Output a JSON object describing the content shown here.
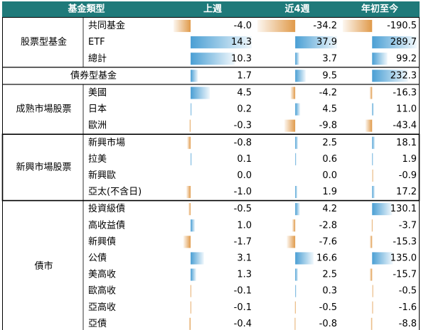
{
  "chart_data": {
    "type": "table",
    "header": {
      "category": "基金類型",
      "columns": [
        "上週",
        "近4週",
        "年初至今"
      ]
    },
    "groups": [
      {
        "name": "股票型基金",
        "rows": [
          {
            "label": "共同基金",
            "values": [
              -4.0,
              -34.2,
              -190.5
            ],
            "display": [
              "-4.0",
              "-34.2",
              "-190.5"
            ]
          },
          {
            "label": "ETF",
            "values": [
              14.3,
              37.9,
              289.7
            ],
            "display": [
              "14.3",
              "37.9",
              "289.7"
            ]
          },
          {
            "label": "總計",
            "values": [
              10.3,
              3.7,
              99.2
            ],
            "display": [
              "10.3",
              "3.7",
              "99.2"
            ]
          }
        ]
      },
      {
        "name": "債券型基金",
        "rows": [
          {
            "label": "",
            "values": [
              1.7,
              9.5,
              232.3
            ],
            "display": [
              "1.7",
              "9.5",
              "232.3"
            ]
          }
        ]
      },
      {
        "name": "成熟市場股票",
        "rows": [
          {
            "label": "美國",
            "values": [
              4.5,
              -4.2,
              -16.3
            ],
            "display": [
              "4.5",
              "-4.2",
              "-16.3"
            ]
          },
          {
            "label": "日本",
            "values": [
              0.2,
              4.5,
              11.0
            ],
            "display": [
              "0.2",
              "4.5",
              "11.0"
            ]
          },
          {
            "label": "歐洲",
            "values": [
              -0.3,
              -9.8,
              -43.4
            ],
            "display": [
              "-0.3",
              "-9.8",
              "-43.4"
            ]
          }
        ]
      },
      {
        "name": "新興市場股票",
        "rows": [
          {
            "label": "新興市場",
            "values": [
              -0.8,
              2.5,
              18.1
            ],
            "display": [
              "-0.8",
              "2.5",
              "18.1"
            ]
          },
          {
            "label": "拉美",
            "values": [
              0.1,
              0.6,
              1.9
            ],
            "display": [
              "0.1",
              "0.6",
              "1.9"
            ]
          },
          {
            "label": "新興歐",
            "values": [
              0.0,
              0.0,
              -0.9
            ],
            "display": [
              "0.0",
              "0.0",
              "-0.9"
            ]
          },
          {
            "label": "亞太(不含日)",
            "values": [
              -1.0,
              1.9,
              17.2
            ],
            "display": [
              "-1.0",
              "1.9",
              "17.2"
            ]
          }
        ]
      },
      {
        "name": "債市",
        "rows": [
          {
            "label": "投資級債",
            "values": [
              -0.5,
              4.2,
              130.1
            ],
            "display": [
              "-0.5",
              "4.2",
              "130.1"
            ]
          },
          {
            "label": "高收益債",
            "values": [
              1.0,
              -2.8,
              -3.7
            ],
            "display": [
              "1.0",
              "-2.8",
              "-3.7"
            ]
          },
          {
            "label": "新興債",
            "values": [
              -1.7,
              -7.6,
              -15.3
            ],
            "display": [
              "-1.7",
              "-7.6",
              "-15.3"
            ]
          },
          {
            "label": "公債",
            "values": [
              3.1,
              16.6,
              135.0
            ],
            "display": [
              "3.1",
              "16.6",
              "135.0"
            ]
          },
          {
            "label": "美高收",
            "values": [
              1.3,
              2.5,
              -15.7
            ],
            "display": [
              "1.3",
              "2.5",
              "-15.7"
            ]
          },
          {
            "label": "歐高收",
            "values": [
              -0.1,
              0.3,
              -0.5
            ],
            "display": [
              "-0.1",
              "0.3",
              "-0.5"
            ]
          },
          {
            "label": "亞高收",
            "values": [
              -0.1,
              -0.5,
              -1.6
            ],
            "display": [
              "-0.1",
              "-0.5",
              "-1.6"
            ]
          },
          {
            "label": "亞債",
            "values": [
              -0.4,
              -0.8,
              -8.8
            ],
            "display": [
              "-0.4",
              "-0.8",
              "-8.8"
            ]
          }
        ]
      }
    ],
    "bar_scale_limits": [
      [
        -4.0,
        14.3
      ],
      [
        -34.2,
        37.9
      ],
      [
        -190.5,
        289.7
      ]
    ],
    "colors": {
      "header_bg": "#1f7a7a",
      "header_text": "#ffffff",
      "positive": "#4a9fd4",
      "negative": "#e09a4a",
      "grid": "#000000"
    }
  }
}
